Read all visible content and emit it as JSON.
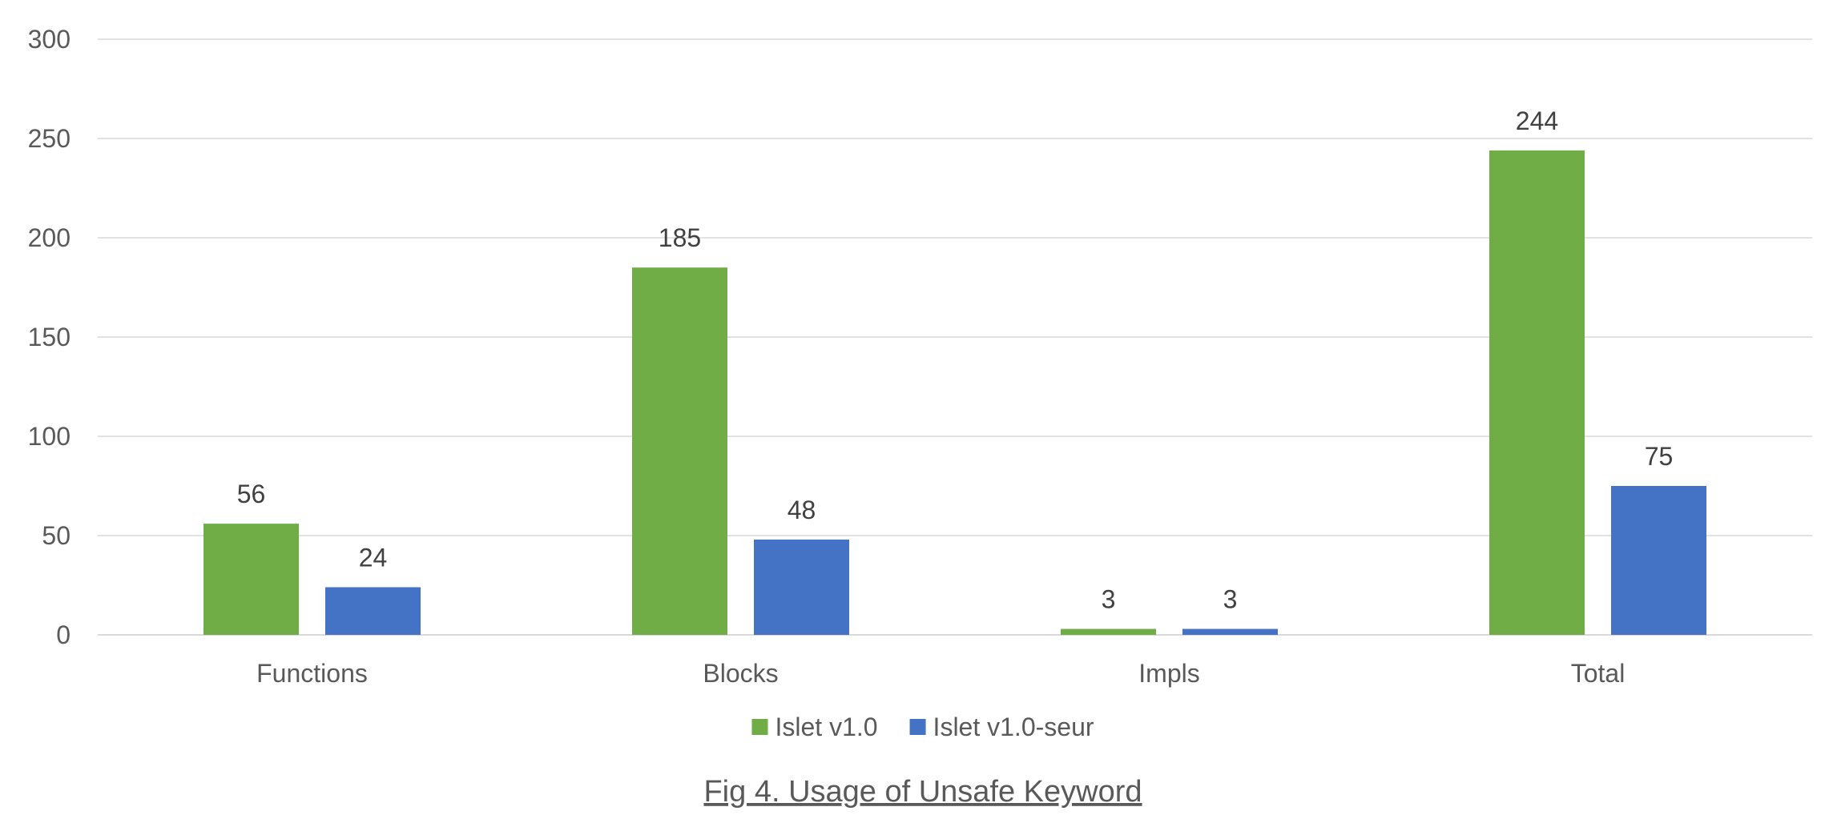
{
  "chart_data": {
    "type": "bar",
    "title": "Fig 4. Usage of Unsafe Keyword",
    "xlabel": "",
    "ylabel": "",
    "categories": [
      "Functions",
      "Blocks",
      "Impls",
      "Total"
    ],
    "series": [
      {
        "name": "Islet v1.0",
        "values": [
          56,
          185,
          3,
          244
        ],
        "color": "#70ad47"
      },
      {
        "name": "Islet v1.0-seur",
        "values": [
          24,
          48,
          3,
          75
        ],
        "color": "#4472c4"
      }
    ],
    "ylim": [
      0,
      300
    ],
    "yticks": [
      0,
      50,
      100,
      150,
      200,
      250,
      300
    ],
    "grid": true,
    "legend_position": "bottom",
    "data_labels": true
  }
}
